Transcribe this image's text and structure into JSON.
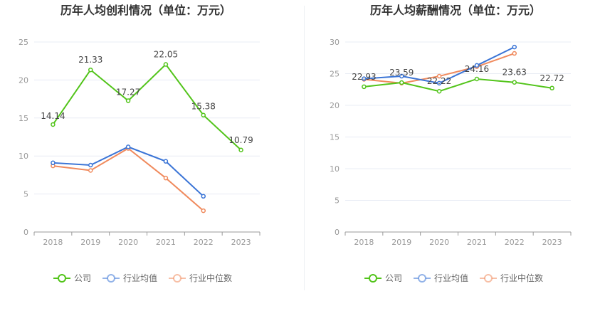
{
  "colors": {
    "company": "#52c41a",
    "industry_avg": "#3a74d6",
    "industry_median": "#f08a5d",
    "grid": "#e8ecf4",
    "axis": "#999999"
  },
  "legend": [
    "公司",
    "行业均值",
    "行业中位数"
  ],
  "chart_data": [
    {
      "type": "line",
      "title": "历年人均创利情况（单位：万元）",
      "categories": [
        "2018",
        "2019",
        "2020",
        "2021",
        "2022",
        "2023"
      ],
      "ylim": [
        0,
        25
      ],
      "yticks": [
        0,
        5,
        10,
        15,
        20,
        25
      ],
      "grid": true,
      "legend_position": "bottom",
      "series": [
        {
          "name": "公司",
          "values": [
            14.14,
            21.33,
            17.27,
            22.05,
            15.38,
            10.79
          ],
          "labels": [
            "14.14",
            "21.33",
            "17.27",
            "22.05",
            "15.38",
            "10.79"
          ]
        },
        {
          "name": "行业均值",
          "values": [
            9.1,
            8.8,
            11.2,
            9.3,
            4.7,
            null
          ]
        },
        {
          "name": "行业中位数",
          "values": [
            8.7,
            8.1,
            11.0,
            7.1,
            2.8,
            null
          ]
        }
      ]
    },
    {
      "type": "line",
      "title": "历年人均薪酬情况（单位：万元）",
      "categories": [
        "2018",
        "2019",
        "2020",
        "2021",
        "2022",
        "2023"
      ],
      "ylim": [
        0,
        30
      ],
      "yticks": [
        0,
        5,
        10,
        15,
        20,
        25,
        30
      ],
      "grid": true,
      "legend_position": "bottom",
      "series": [
        {
          "name": "公司",
          "values": [
            22.93,
            23.59,
            22.22,
            24.16,
            23.63,
            22.72
          ],
          "labels": [
            "22.93",
            "23.59",
            "22.22",
            "24.16",
            "23.63",
            "22.72"
          ]
        },
        {
          "name": "行业均值",
          "values": [
            24.2,
            24.6,
            23.5,
            26.3,
            29.2,
            null
          ]
        },
        {
          "name": "行业中位数",
          "values": [
            24.1,
            23.5,
            24.6,
            26.1,
            28.2,
            null
          ]
        }
      ]
    }
  ]
}
